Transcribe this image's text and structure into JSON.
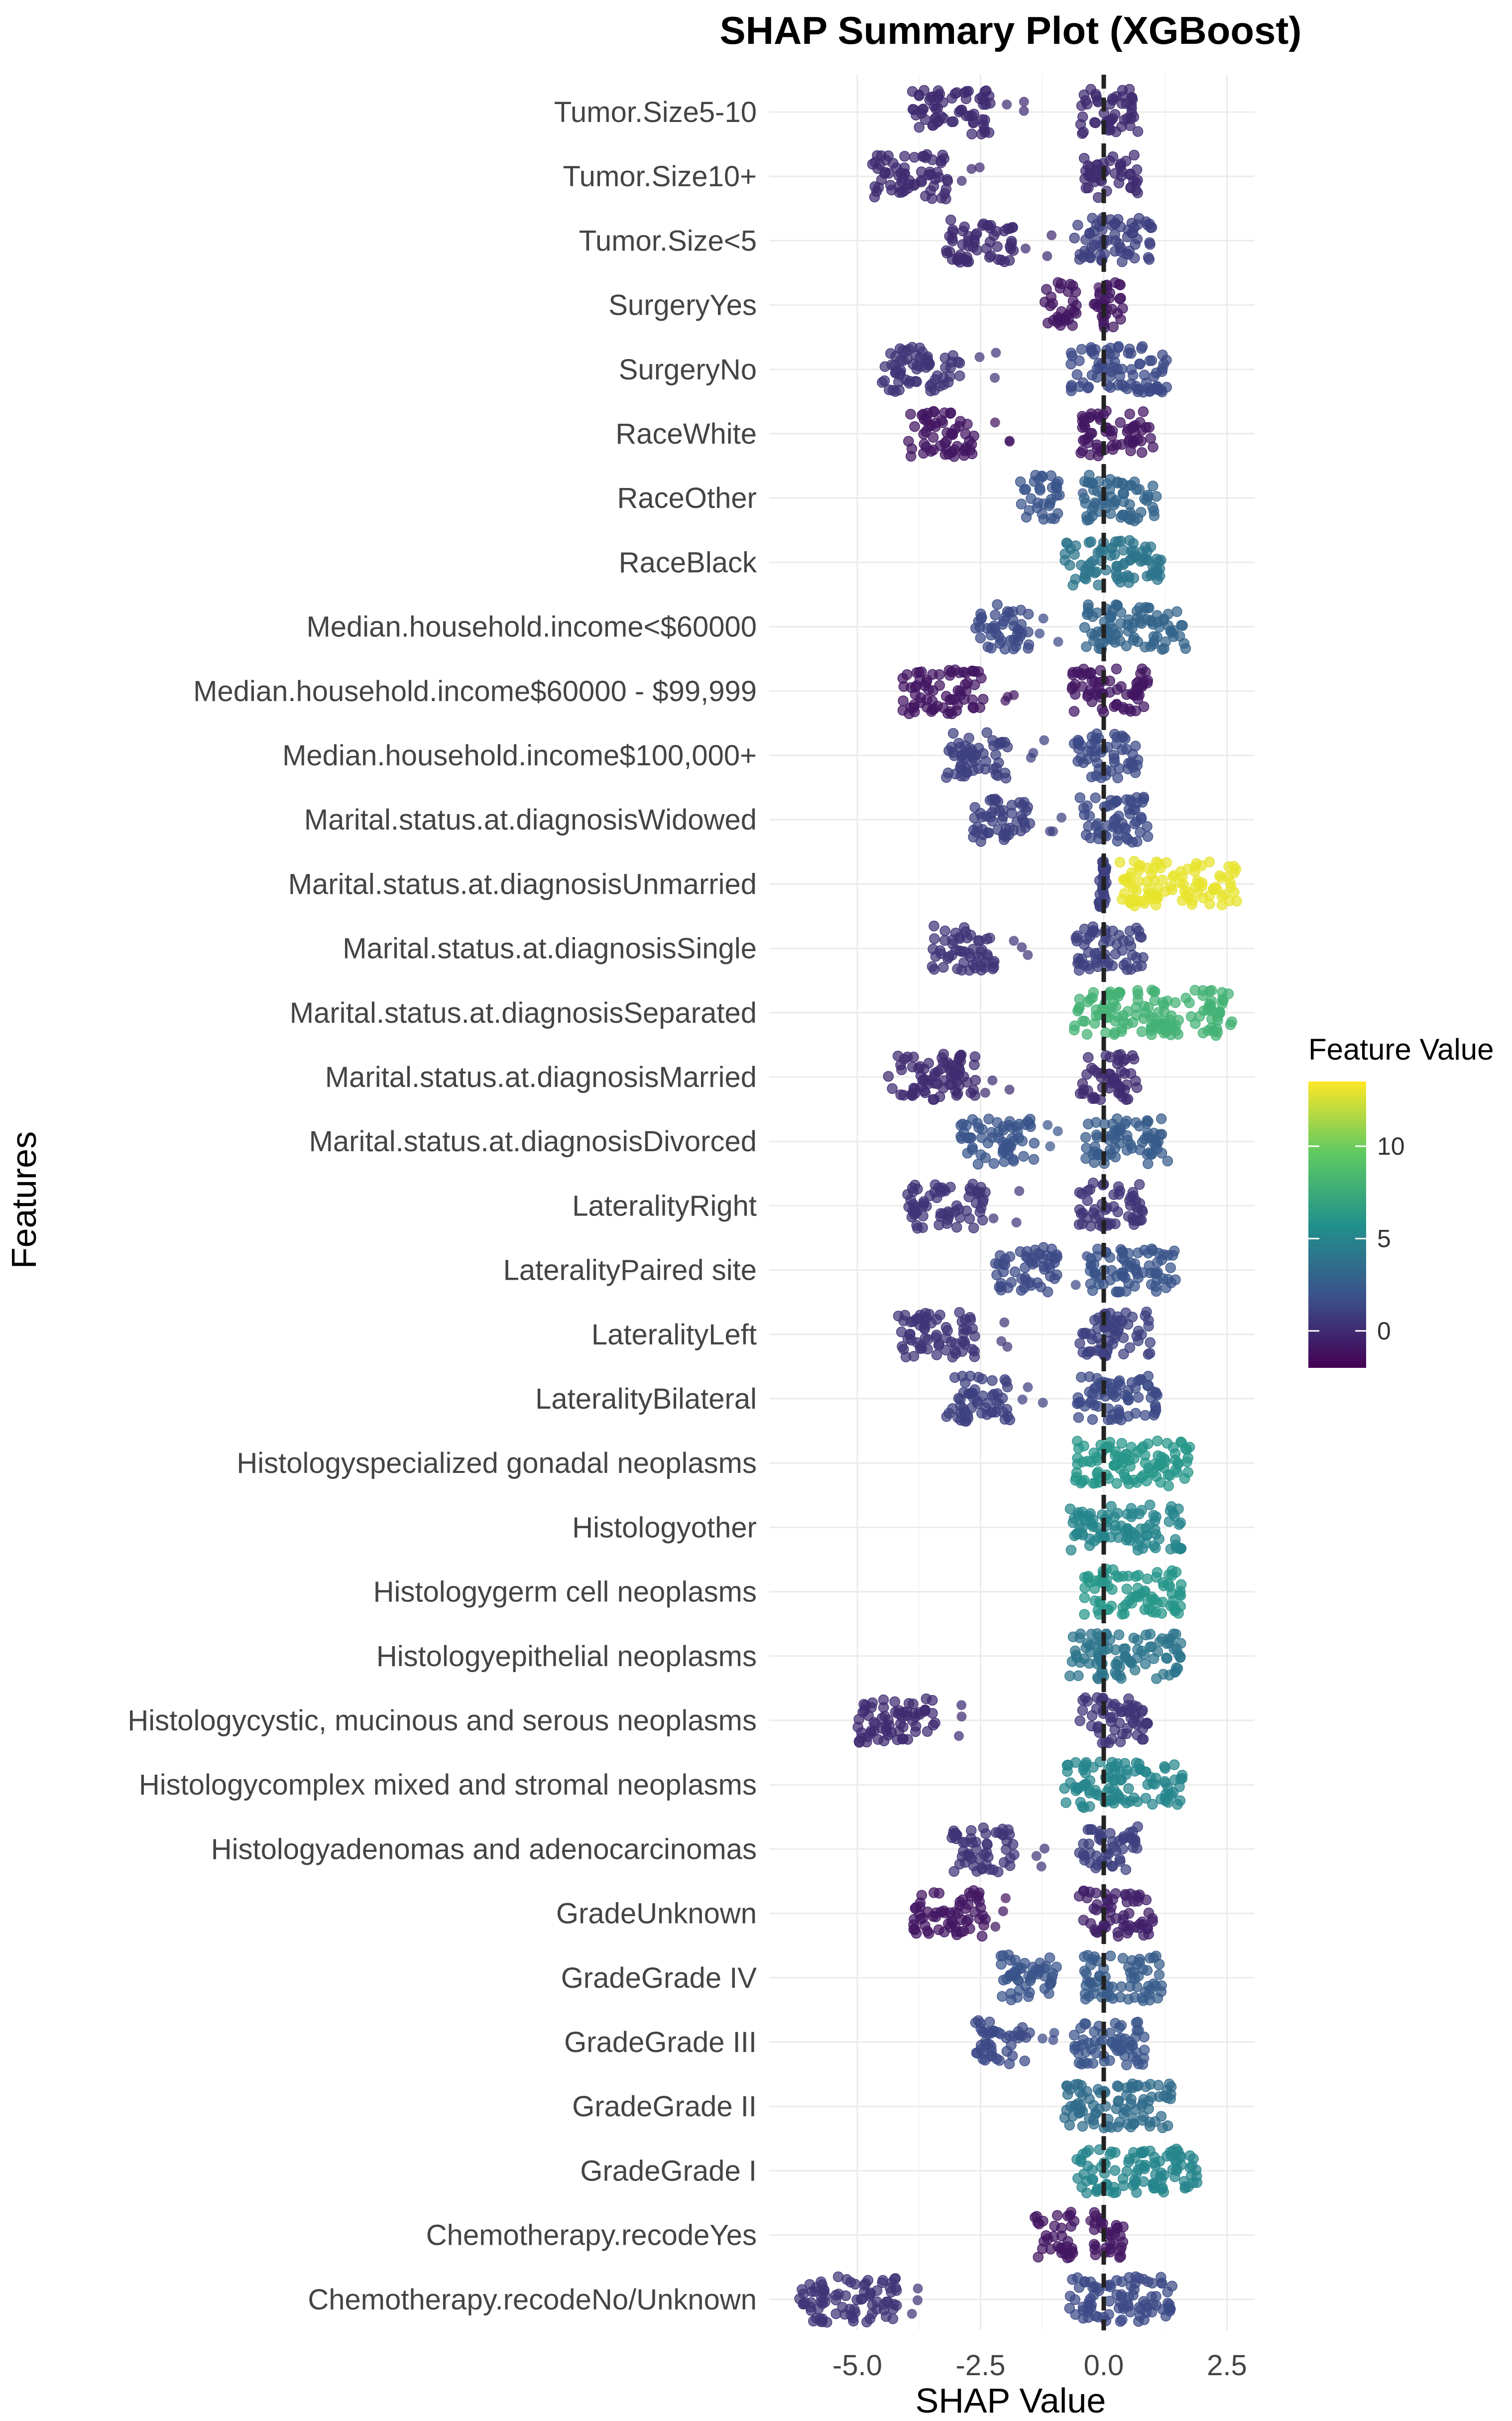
{
  "chart_data": {
    "type": "scatter",
    "subtype": "shap-beeswarm",
    "title": "SHAP Summary Plot (XGBoost)",
    "xlabel": "SHAP Value",
    "ylabel": "Features",
    "xlim": [
      -6.5,
      3.3
    ],
    "x_ticks": [
      -5.0,
      -2.5,
      0.0,
      2.5
    ],
    "x_tick_labels": [
      "-5.0",
      "-2.5",
      "0.0",
      "2.5"
    ],
    "grid": true,
    "reference_line": {
      "x": 0,
      "style": "dashed"
    },
    "legend": {
      "title": "Feature Value",
      "placement": "right",
      "ticks": [
        0,
        5,
        10
      ],
      "tick_labels": [
        "0",
        "5",
        "10"
      ],
      "range": [
        -2,
        13.5
      ],
      "colormap": [
        "#440154",
        "#3b528b",
        "#21918c",
        "#5ec962",
        "#fde725"
      ]
    },
    "features": [
      {
        "name": "Tumor.Size5-10",
        "clusters": [
          {
            "min": -3.9,
            "max": -2.3,
            "value": 0
          },
          {
            "min": -0.5,
            "max": 0.7,
            "value": 0
          }
        ]
      },
      {
        "name": "Tumor.Size10+",
        "clusters": [
          {
            "min": -4.7,
            "max": -3.1,
            "value": 0
          },
          {
            "min": -0.4,
            "max": 0.7,
            "value": 0
          }
        ]
      },
      {
        "name": "Tumor.Size<5",
        "clusters": [
          {
            "min": -3.2,
            "max": -1.8,
            "value": 0
          },
          {
            "min": -0.6,
            "max": 1.0,
            "value": 1
          }
        ]
      },
      {
        "name": "SurgeryYes",
        "clusters": [
          {
            "min": -1.2,
            "max": -0.5,
            "value": -1
          },
          {
            "min": -0.2,
            "max": 0.4,
            "value": -1
          }
        ]
      },
      {
        "name": "SurgeryNo",
        "clusters": [
          {
            "min": -4.5,
            "max": -2.9,
            "value": 0.5
          },
          {
            "min": -0.7,
            "max": 1.3,
            "value": 1.5
          }
        ]
      },
      {
        "name": "RaceWhite",
        "clusters": [
          {
            "min": -4.0,
            "max": -2.6,
            "value": -1
          },
          {
            "min": -0.5,
            "max": 1.0,
            "value": -1
          }
        ]
      },
      {
        "name": "RaceOther",
        "clusters": [
          {
            "min": -1.7,
            "max": -0.9,
            "value": 2
          },
          {
            "min": -0.4,
            "max": 1.1,
            "value": 3
          }
        ]
      },
      {
        "name": "RaceBlack",
        "clusters": [
          {
            "min": -0.8,
            "max": 1.2,
            "value": 4
          }
        ]
      },
      {
        "name": "Median.household.income<$60000",
        "clusters": [
          {
            "min": -2.6,
            "max": -1.5,
            "value": 1.5
          },
          {
            "min": -0.4,
            "max": 1.7,
            "value": 3
          }
        ]
      },
      {
        "name": "Median.household.income$60000 - $99,999",
        "clusters": [
          {
            "min": -4.1,
            "max": -2.4,
            "value": -1
          },
          {
            "min": -0.7,
            "max": 0.9,
            "value": -1
          }
        ]
      },
      {
        "name": "Median.household.income$100,000+",
        "clusters": [
          {
            "min": -3.2,
            "max": -1.9,
            "value": 1
          },
          {
            "min": -0.6,
            "max": 0.7,
            "value": 1.5
          }
        ]
      },
      {
        "name": "Marital.status.at.diagnosisWidowed",
        "clusters": [
          {
            "min": -2.7,
            "max": -1.5,
            "value": 1
          },
          {
            "min": -0.5,
            "max": 0.9,
            "value": 1.5
          }
        ]
      },
      {
        "name": "Marital.status.at.diagnosisUnmarried",
        "clusters": [
          {
            "min": -0.1,
            "max": 0.05,
            "value": 1
          },
          {
            "min": 0.3,
            "max": 2.7,
            "value": 13
          }
        ]
      },
      {
        "name": "Marital.status.at.diagnosisSingle",
        "clusters": [
          {
            "min": -3.5,
            "max": -2.2,
            "value": 0.5
          },
          {
            "min": -0.6,
            "max": 0.8,
            "value": 1
          }
        ]
      },
      {
        "name": "Marital.status.at.diagnosisSeparated",
        "clusters": [
          {
            "min": -0.6,
            "max": 2.6,
            "value": 8
          }
        ]
      },
      {
        "name": "Marital.status.at.diagnosisMarried",
        "clusters": [
          {
            "min": -4.4,
            "max": -2.6,
            "value": 0
          },
          {
            "min": -0.5,
            "max": 0.7,
            "value": 0
          }
        ]
      },
      {
        "name": "Marital.status.at.diagnosisDivorced",
        "clusters": [
          {
            "min": -2.9,
            "max": -1.4,
            "value": 2
          },
          {
            "min": -0.4,
            "max": 1.3,
            "value": 2.5
          }
        ]
      },
      {
        "name": "LateralityRight",
        "clusters": [
          {
            "min": -4.0,
            "max": -2.4,
            "value": 0.5
          },
          {
            "min": -0.5,
            "max": 0.8,
            "value": 0.5
          }
        ]
      },
      {
        "name": "LateralityPaired site",
        "clusters": [
          {
            "min": -2.2,
            "max": -0.9,
            "value": 1.5
          },
          {
            "min": -0.3,
            "max": 1.5,
            "value": 2
          }
        ]
      },
      {
        "name": "LateralityLeft",
        "clusters": [
          {
            "min": -4.2,
            "max": -2.6,
            "value": 0.5
          },
          {
            "min": -0.5,
            "max": 1.0,
            "value": 1
          }
        ]
      },
      {
        "name": "LateralityBilateral",
        "clusters": [
          {
            "min": -3.2,
            "max": -1.9,
            "value": 1
          },
          {
            "min": -0.6,
            "max": 1.1,
            "value": 1.5
          }
        ]
      },
      {
        "name": "Histologyspecialized gonadal neoplasms",
        "clusters": [
          {
            "min": -0.6,
            "max": 1.8,
            "value": 6
          }
        ]
      },
      {
        "name": "Histologyother",
        "clusters": [
          {
            "min": -0.7,
            "max": 1.6,
            "value": 5
          }
        ]
      },
      {
        "name": "Histologygerm cell neoplasms",
        "clusters": [
          {
            "min": -0.4,
            "max": 1.6,
            "value": 6
          }
        ]
      },
      {
        "name": "Histologyepithelial neoplasms",
        "clusters": [
          {
            "min": -0.7,
            "max": 1.6,
            "value": 4
          }
        ]
      },
      {
        "name": "Histologycystic, mucinous and serous neoplasms",
        "clusters": [
          {
            "min": -5.0,
            "max": -3.4,
            "value": 0
          },
          {
            "min": -0.5,
            "max": 0.9,
            "value": 0.5
          }
        ]
      },
      {
        "name": "Histologycomplex mixed and stromal neoplasms",
        "clusters": [
          {
            "min": -0.8,
            "max": 1.6,
            "value": 5
          }
        ]
      },
      {
        "name": "Histologyadenomas and adenocarcinomas",
        "clusters": [
          {
            "min": -3.1,
            "max": -1.8,
            "value": 0.5
          },
          {
            "min": -0.5,
            "max": 0.7,
            "value": 1
          }
        ]
      },
      {
        "name": "GradeUnknown",
        "clusters": [
          {
            "min": -3.9,
            "max": -2.4,
            "value": -1
          },
          {
            "min": -0.5,
            "max": 1.0,
            "value": -0.5
          }
        ]
      },
      {
        "name": "GradeGrade IV",
        "clusters": [
          {
            "min": -2.1,
            "max": -0.9,
            "value": 2
          },
          {
            "min": -0.4,
            "max": 1.2,
            "value": 2.5
          }
        ]
      },
      {
        "name": "GradeGrade III",
        "clusters": [
          {
            "min": -2.6,
            "max": -1.5,
            "value": 1.5
          },
          {
            "min": -0.6,
            "max": 0.9,
            "value": 2
          }
        ]
      },
      {
        "name": "GradeGrade II",
        "clusters": [
          {
            "min": -0.8,
            "max": 1.4,
            "value": 3.5
          }
        ]
      },
      {
        "name": "GradeGrade I",
        "clusters": [
          {
            "min": -0.6,
            "max": 1.9,
            "value": 5
          }
        ]
      },
      {
        "name": "Chemotherapy.recodeYes",
        "clusters": [
          {
            "min": -1.4,
            "max": -0.6,
            "value": -1
          },
          {
            "min": -0.2,
            "max": 0.4,
            "value": -1
          }
        ]
      },
      {
        "name": "Chemotherapy.recodeNo/Unknown",
        "clusters": [
          {
            "min": -6.2,
            "max": -4.2,
            "value": 0.5
          },
          {
            "min": -0.7,
            "max": 1.4,
            "value": 1.5
          }
        ]
      }
    ]
  }
}
